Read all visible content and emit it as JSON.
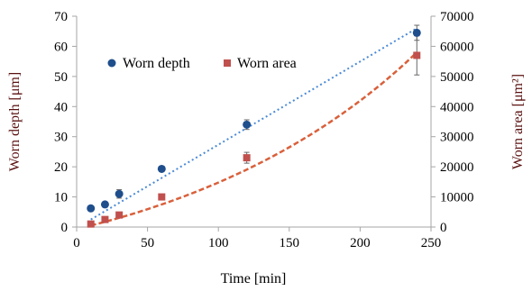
{
  "chart_data": {
    "type": "scatter",
    "xlabel": "Time [min]",
    "ylabel_left": "Worn depth [μm]",
    "ylabel_right": "Worn area [μm²]",
    "xlim": [
      0,
      250
    ],
    "ylim_left": [
      0,
      70
    ],
    "ylim_right": [
      0,
      70000
    ],
    "x_ticks": [
      "0",
      "50",
      "100",
      "150",
      "200",
      "250"
    ],
    "y_left_ticks": [
      "0",
      "10",
      "20",
      "30",
      "40",
      "50",
      "60",
      "70"
    ],
    "y_right_ticks": [
      "0",
      "10000",
      "20000",
      "30000",
      "40000",
      "50000",
      "60000",
      "70000"
    ],
    "grid": false,
    "legend_position": "top-left",
    "series": [
      {
        "name": "Worn depth",
        "axis": "left",
        "marker": "circle",
        "color": "#1f4e8c",
        "trend_color": "#4a8ad6",
        "trend_style": "dotted",
        "x": [
          10,
          20,
          30,
          60,
          120,
          240
        ],
        "y": [
          6.2,
          7.5,
          11,
          19.3,
          34,
          64.5
        ],
        "err": [
          0.5,
          0.6,
          1.4,
          0.6,
          1.6,
          2.5
        ],
        "trend_start": [
          10,
          2.5
        ],
        "trend_end": [
          240,
          66
        ]
      },
      {
        "name": "Worn area",
        "axis": "right",
        "marker": "square",
        "color": "#c0504d",
        "trend_color": "#d9603b",
        "trend_style": "dashed",
        "x": [
          10,
          20,
          30,
          60,
          120,
          240
        ],
        "y": [
          1000,
          2500,
          4000,
          10000,
          23000,
          57000
        ],
        "err": [
          300,
          400,
          600,
          600,
          1800,
          6500
        ],
        "trend_start": [
          10,
          500
        ],
        "trend_end": [
          240,
          58000
        ]
      }
    ]
  }
}
